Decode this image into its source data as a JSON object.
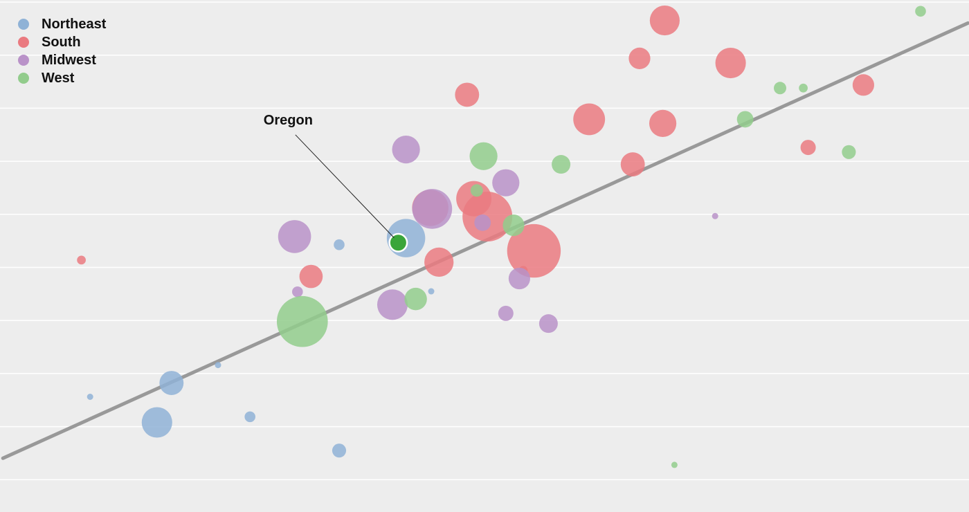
{
  "chart_data": {
    "type": "scatter",
    "subtype": "bubble",
    "title": "",
    "xlabel": "",
    "ylabel": "",
    "xlim": [
      0,
      100
    ],
    "ylim": [
      0,
      100
    ],
    "grid": "horizontal",
    "legend_position": "top-left",
    "colors": {
      "Northeast": "#8fb2d6",
      "South": "#ea7a80",
      "Midwest": "#b992c8",
      "West": "#92cc8c",
      "highlight": "#3aa53a",
      "trendline": "#999999",
      "gridline": "#ffffff",
      "background": "#ededed"
    },
    "legend": [
      {
        "name": "Northeast",
        "color": "#8fb2d6"
      },
      {
        "name": "South",
        "color": "#ea7a80"
      },
      {
        "name": "Midwest",
        "color": "#b992c8"
      },
      {
        "name": "West",
        "color": "#92cc8c"
      }
    ],
    "trendline": {
      "x": [
        0.3,
        99.9
      ],
      "y": [
        10.5,
        95.5
      ]
    },
    "annotation": {
      "label": "Oregon",
      "target": [
        41.1,
        52.6
      ],
      "label_at": [
        27.2,
        75.7
      ]
    },
    "series": [
      {
        "name": "Northeast",
        "points": [
          {
            "x": 9.3,
            "y": 22.5,
            "size": 1
          },
          {
            "x": 17.7,
            "y": 25.2,
            "size": 15
          },
          {
            "x": 16.2,
            "y": 17.5,
            "size": 24
          },
          {
            "x": 22.5,
            "y": 28.7,
            "size": 1
          },
          {
            "x": 25.8,
            "y": 18.6,
            "size": 3
          },
          {
            "x": 35.0,
            "y": 12.0,
            "size": 5
          },
          {
            "x": 35.0,
            "y": 52.2,
            "size": 3
          },
          {
            "x": 44.5,
            "y": 43.1,
            "size": 1
          },
          {
            "x": 41.9,
            "y": 53.5,
            "size": 38
          }
        ]
      },
      {
        "name": "South",
        "points": [
          {
            "x": 8.4,
            "y": 49.2,
            "size": 2
          },
          {
            "x": 32.1,
            "y": 46.0,
            "size": 14
          },
          {
            "x": 45.3,
            "y": 48.8,
            "size": 22
          },
          {
            "x": 44.4,
            "y": 59.4,
            "size": 34
          },
          {
            "x": 48.9,
            "y": 61.2,
            "size": 32
          },
          {
            "x": 50.3,
            "y": 57.7,
            "size": 64
          },
          {
            "x": 55.1,
            "y": 51.0,
            "size": 74
          },
          {
            "x": 54.0,
            "y": 47.2,
            "size": 2
          },
          {
            "x": 48.2,
            "y": 81.5,
            "size": 15
          },
          {
            "x": 60.8,
            "y": 76.7,
            "size": 26
          },
          {
            "x": 65.3,
            "y": 67.9,
            "size": 15
          },
          {
            "x": 66.0,
            "y": 88.6,
            "size": 12
          },
          {
            "x": 68.4,
            "y": 75.9,
            "size": 19
          },
          {
            "x": 68.6,
            "y": 96.0,
            "size": 23
          },
          {
            "x": 75.4,
            "y": 87.7,
            "size": 24
          },
          {
            "x": 83.4,
            "y": 71.2,
            "size": 6
          },
          {
            "x": 89.1,
            "y": 83.4,
            "size": 12
          }
        ]
      },
      {
        "name": "Midwest",
        "points": [
          {
            "x": 30.7,
            "y": 43.0,
            "size": 3
          },
          {
            "x": 30.4,
            "y": 53.8,
            "size": 28
          },
          {
            "x": 40.5,
            "y": 40.5,
            "size": 24
          },
          {
            "x": 41.9,
            "y": 70.8,
            "size": 20
          },
          {
            "x": 44.6,
            "y": 59.2,
            "size": 41
          },
          {
            "x": 49.8,
            "y": 56.5,
            "size": 7
          },
          {
            "x": 52.2,
            "y": 64.3,
            "size": 19
          },
          {
            "x": 53.6,
            "y": 45.6,
            "size": 12
          },
          {
            "x": 52.2,
            "y": 38.8,
            "size": 6
          },
          {
            "x": 56.6,
            "y": 36.8,
            "size": 9
          },
          {
            "x": 73.8,
            "y": 57.8,
            "size": 1
          }
        ]
      },
      {
        "name": "West",
        "points": [
          {
            "x": 31.2,
            "y": 37.2,
            "size": 67
          },
          {
            "x": 42.9,
            "y": 41.6,
            "size": 13
          },
          {
            "x": 49.2,
            "y": 62.8,
            "size": 4
          },
          {
            "x": 49.9,
            "y": 69.5,
            "size": 20
          },
          {
            "x": 53.0,
            "y": 56.0,
            "size": 12
          },
          {
            "x": 57.9,
            "y": 67.9,
            "size": 9
          },
          {
            "x": 69.6,
            "y": 9.2,
            "size": 1
          },
          {
            "x": 76.9,
            "y": 76.7,
            "size": 7
          },
          {
            "x": 80.5,
            "y": 82.8,
            "size": 4
          },
          {
            "x": 82.9,
            "y": 82.8,
            "size": 2
          },
          {
            "x": 87.6,
            "y": 70.3,
            "size": 5
          },
          {
            "x": 95.0,
            "y": 97.8,
            "size": 3
          }
        ]
      },
      {
        "name": "Oregon",
        "highlight": true,
        "points": [
          {
            "x": 41.1,
            "y": 52.6,
            "size": 8
          }
        ]
      }
    ]
  }
}
